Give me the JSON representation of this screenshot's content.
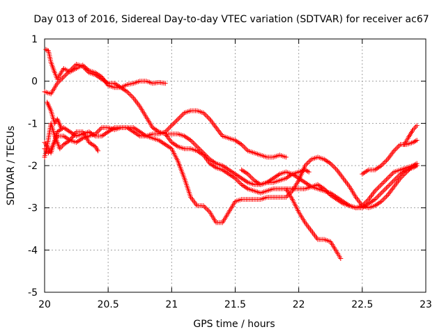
{
  "chart_data": {
    "type": "scatter",
    "title": "Day 013 of 2016, Sidereal Day-to-day VTEC variation (SDTVAR) for receiver ac67",
    "xlabel": "GPS time / hours",
    "ylabel": "SDTVAR / TECUs",
    "xlim": [
      20,
      23
    ],
    "ylim": [
      -5,
      1
    ],
    "xticks": [
      "20",
      "20.5",
      "21",
      "21.5",
      "22",
      "22.5",
      "23"
    ],
    "yticks": [
      "1",
      "0",
      "-1",
      "-2",
      "-3",
      "-4",
      "-5"
    ],
    "grid": true,
    "marker": "+",
    "marker_color": "#ff0000",
    "series": [
      {
        "points": [
          [
            20.01,
            0.75
          ],
          [
            20.03,
            0.72
          ],
          [
            20.05,
            0.45
          ],
          [
            20.08,
            0.2
          ],
          [
            20.1,
            0.05
          ],
          [
            20.15,
            0.3
          ],
          [
            20.2,
            0.22
          ],
          [
            20.25,
            0.3
          ],
          [
            20.3,
            0.38
          ],
          [
            20.35,
            0.25
          ],
          [
            20.4,
            0.2
          ],
          [
            20.45,
            0.1
          ],
          [
            20.5,
            -0.1
          ],
          [
            20.55,
            -0.15
          ],
          [
            20.6,
            -0.15
          ],
          [
            20.65,
            -0.08
          ],
          [
            20.7,
            -0.05
          ],
          [
            20.75,
            0.0
          ],
          [
            20.8,
            0.0
          ],
          [
            20.85,
            -0.05
          ],
          [
            20.9,
            -0.03
          ],
          [
            20.95,
            -0.05
          ]
        ]
      },
      {
        "points": [
          [
            20.0,
            -0.25
          ],
          [
            20.05,
            -0.3
          ],
          [
            20.1,
            -0.05
          ],
          [
            20.15,
            0.1
          ],
          [
            20.2,
            0.25
          ],
          [
            20.25,
            0.4
          ],
          [
            20.3,
            0.35
          ],
          [
            20.35,
            0.2
          ],
          [
            20.4,
            0.15
          ],
          [
            20.45,
            0.05
          ],
          [
            20.5,
            -0.05
          ],
          [
            20.55,
            -0.05
          ],
          [
            20.6,
            -0.15
          ],
          [
            20.65,
            -0.25
          ],
          [
            20.7,
            -0.4
          ],
          [
            20.75,
            -0.6
          ],
          [
            20.8,
            -0.85
          ],
          [
            20.85,
            -1.1
          ],
          [
            20.9,
            -1.2
          ],
          [
            20.95,
            -1.25
          ],
          [
            21.0,
            -1.25
          ],
          [
            21.05,
            -1.25
          ],
          [
            21.1,
            -1.3
          ],
          [
            21.15,
            -1.4
          ],
          [
            21.2,
            -1.55
          ],
          [
            21.25,
            -1.7
          ],
          [
            21.3,
            -1.85
          ],
          [
            21.35,
            -1.95
          ],
          [
            21.4,
            -2.0
          ],
          [
            21.45,
            -2.1
          ],
          [
            21.5,
            -2.2
          ],
          [
            21.55,
            -2.3
          ],
          [
            21.6,
            -2.4
          ],
          [
            21.65,
            -2.45
          ],
          [
            21.7,
            -2.45
          ],
          [
            21.75,
            -2.4
          ],
          [
            21.8,
            -2.3
          ],
          [
            21.85,
            -2.2
          ],
          [
            21.9,
            -2.15
          ],
          [
            21.95,
            -2.2
          ],
          [
            22.0,
            -2.3
          ],
          [
            22.05,
            -2.4
          ],
          [
            22.1,
            -2.5
          ],
          [
            22.15,
            -2.55
          ],
          [
            22.2,
            -2.6
          ],
          [
            22.25,
            -2.65
          ],
          [
            22.3,
            -2.75
          ],
          [
            22.35,
            -2.85
          ],
          [
            22.4,
            -2.95
          ],
          [
            22.45,
            -3.0
          ],
          [
            22.5,
            -3.0
          ],
          [
            22.55,
            -2.9
          ],
          [
            22.6,
            -2.8
          ],
          [
            22.65,
            -2.65
          ],
          [
            22.7,
            -2.5
          ],
          [
            22.75,
            -2.35
          ],
          [
            22.8,
            -2.2
          ],
          [
            22.85,
            -2.1
          ],
          [
            22.9,
            -2.05
          ],
          [
            22.93,
            -2.0
          ]
        ]
      },
      {
        "points": [
          [
            20.0,
            -1.6
          ],
          [
            20.03,
            -1.7
          ],
          [
            20.06,
            -1.55
          ],
          [
            20.1,
            -1.3
          ],
          [
            20.15,
            -1.3
          ],
          [
            20.2,
            -1.4
          ],
          [
            20.25,
            -1.45
          ],
          [
            20.3,
            -1.35
          ],
          [
            20.35,
            -1.3
          ],
          [
            20.4,
            -1.25
          ],
          [
            20.45,
            -1.1
          ],
          [
            20.5,
            -1.1
          ],
          [
            20.55,
            -1.15
          ],
          [
            20.6,
            -1.1
          ],
          [
            20.65,
            -1.1
          ],
          [
            20.7,
            -1.2
          ],
          [
            20.75,
            -1.3
          ],
          [
            20.8,
            -1.3
          ],
          [
            20.85,
            -1.35
          ],
          [
            20.9,
            -1.4
          ],
          [
            20.95,
            -1.5
          ],
          [
            21.0,
            -1.6
          ],
          [
            21.05,
            -1.9
          ],
          [
            21.1,
            -2.3
          ],
          [
            21.15,
            -2.75
          ],
          [
            21.2,
            -2.95
          ],
          [
            21.25,
            -2.95
          ],
          [
            21.3,
            -3.1
          ],
          [
            21.35,
            -3.35
          ],
          [
            21.4,
            -3.35
          ],
          [
            21.45,
            -3.1
          ],
          [
            21.5,
            -2.85
          ],
          [
            21.55,
            -2.8
          ],
          [
            21.6,
            -2.8
          ],
          [
            21.65,
            -2.8
          ],
          [
            21.7,
            -2.8
          ],
          [
            21.75,
            -2.75
          ],
          [
            21.8,
            -2.75
          ],
          [
            21.85,
            -2.75
          ],
          [
            21.9,
            -2.75
          ],
          [
            21.95,
            -2.6
          ],
          [
            22.0,
            -2.35
          ],
          [
            22.05,
            -2.0
          ],
          [
            22.1,
            -1.85
          ],
          [
            22.15,
            -1.8
          ],
          [
            22.2,
            -1.85
          ],
          [
            22.25,
            -1.95
          ],
          [
            22.3,
            -2.1
          ],
          [
            22.35,
            -2.3
          ],
          [
            22.4,
            -2.5
          ],
          [
            22.45,
            -2.75
          ],
          [
            22.5,
            -2.95
          ],
          [
            22.55,
            -3.0
          ],
          [
            22.6,
            -2.95
          ],
          [
            22.65,
            -2.85
          ],
          [
            22.7,
            -2.7
          ],
          [
            22.75,
            -2.5
          ],
          [
            22.8,
            -2.3
          ],
          [
            22.85,
            -2.15
          ],
          [
            22.9,
            -2.0
          ],
          [
            22.93,
            -2.0
          ]
        ]
      },
      {
        "points": [
          [
            20.0,
            -1.45
          ],
          [
            20.05,
            -1.7
          ],
          [
            20.08,
            -1.4
          ],
          [
            20.1,
            -1.2
          ],
          [
            20.15,
            -1.1
          ],
          [
            20.2,
            -1.2
          ],
          [
            20.25,
            -1.3
          ],
          [
            20.3,
            -1.25
          ],
          [
            20.35,
            -1.2
          ],
          [
            20.4,
            -1.3
          ],
          [
            20.45,
            -1.3
          ],
          [
            20.5,
            -1.2
          ],
          [
            20.55,
            -1.1
          ],
          [
            20.6,
            -1.1
          ],
          [
            20.65,
            -1.1
          ],
          [
            20.7,
            -1.1
          ],
          [
            20.75,
            -1.2
          ],
          [
            20.8,
            -1.3
          ],
          [
            20.85,
            -1.25
          ],
          [
            20.9,
            -1.25
          ],
          [
            20.95,
            -1.2
          ],
          [
            21.0,
            -1.05
          ],
          [
            21.05,
            -0.9
          ],
          [
            21.1,
            -0.75
          ],
          [
            21.15,
            -0.7
          ],
          [
            21.2,
            -0.7
          ],
          [
            21.25,
            -0.75
          ],
          [
            21.3,
            -0.9
          ],
          [
            21.35,
            -1.1
          ],
          [
            21.4,
            -1.3
          ],
          [
            21.45,
            -1.35
          ],
          [
            21.5,
            -1.4
          ],
          [
            21.55,
            -1.5
          ],
          [
            21.6,
            -1.65
          ],
          [
            21.65,
            -1.7
          ],
          [
            21.7,
            -1.75
          ],
          [
            21.75,
            -1.8
          ],
          [
            21.8,
            -1.8
          ],
          [
            21.85,
            -1.75
          ],
          [
            21.9,
            -1.8
          ]
        ]
      },
      {
        "points": [
          [
            20.0,
            -1.8
          ],
          [
            20.02,
            -1.55
          ],
          [
            20.05,
            -1.0
          ],
          [
            20.08,
            -1.3
          ],
          [
            20.12,
            -1.6
          ],
          [
            20.15,
            -1.5
          ],
          [
            20.2,
            -1.4
          ],
          [
            20.25,
            -1.2
          ],
          [
            20.3,
            -1.2
          ],
          [
            20.35,
            -1.45
          ],
          [
            20.4,
            -1.55
          ],
          [
            20.42,
            -1.65
          ]
        ]
      },
      {
        "points": [
          [
            20.02,
            -0.5
          ],
          [
            20.05,
            -0.7
          ],
          [
            20.08,
            -1.0
          ],
          [
            20.1,
            -0.9
          ],
          [
            20.13,
            -1.1
          ]
        ]
      },
      {
        "points": [
          [
            20.95,
            -1.25
          ],
          [
            21.0,
            -1.45
          ],
          [
            21.05,
            -1.55
          ],
          [
            21.1,
            -1.6
          ],
          [
            21.15,
            -1.6
          ],
          [
            21.2,
            -1.65
          ],
          [
            21.25,
            -1.75
          ],
          [
            21.3,
            -1.95
          ],
          [
            21.35,
            -2.05
          ],
          [
            21.4,
            -2.1
          ],
          [
            21.45,
            -2.2
          ],
          [
            21.5,
            -2.3
          ],
          [
            21.55,
            -2.45
          ],
          [
            21.6,
            -2.55
          ],
          [
            21.65,
            -2.6
          ],
          [
            21.7,
            -2.65
          ],
          [
            21.75,
            -2.6
          ],
          [
            21.8,
            -2.55
          ],
          [
            21.85,
            -2.55
          ],
          [
            21.9,
            -2.55
          ],
          [
            21.95,
            -2.55
          ],
          [
            22.0,
            -2.55
          ],
          [
            22.05,
            -2.55
          ],
          [
            22.1,
            -2.5
          ],
          [
            22.15,
            -2.45
          ],
          [
            22.2,
            -2.55
          ],
          [
            22.25,
            -2.7
          ],
          [
            22.3,
            -2.8
          ],
          [
            22.35,
            -2.9
          ],
          [
            22.4,
            -2.95
          ],
          [
            22.45,
            -3.0
          ],
          [
            22.5,
            -2.95
          ],
          [
            22.55,
            -2.8
          ],
          [
            22.6,
            -2.6
          ],
          [
            22.65,
            -2.45
          ],
          [
            22.7,
            -2.3
          ],
          [
            22.75,
            -2.15
          ],
          [
            22.8,
            -2.1
          ],
          [
            22.85,
            -2.05
          ],
          [
            22.9,
            -2.0
          ],
          [
            22.93,
            -1.95
          ]
        ]
      },
      {
        "points": [
          [
            21.55,
            -2.1
          ],
          [
            21.6,
            -2.2
          ],
          [
            21.65,
            -2.35
          ],
          [
            21.7,
            -2.45
          ],
          [
            21.75,
            -2.4
          ],
          [
            21.8,
            -2.4
          ],
          [
            21.85,
            -2.35
          ],
          [
            21.9,
            -2.3
          ],
          [
            21.95,
            -2.2
          ],
          [
            22.0,
            -2.15
          ],
          [
            22.05,
            -2.1
          ],
          [
            22.08,
            -2.15
          ]
        ]
      },
      {
        "points": [
          [
            21.9,
            -2.55
          ],
          [
            21.95,
            -2.8
          ],
          [
            22.0,
            -3.1
          ],
          [
            22.05,
            -3.35
          ],
          [
            22.1,
            -3.55
          ],
          [
            22.15,
            -3.75
          ],
          [
            22.2,
            -3.75
          ],
          [
            22.25,
            -3.8
          ],
          [
            22.3,
            -4.05
          ],
          [
            22.33,
            -4.2
          ]
        ]
      },
      {
        "points": [
          [
            22.5,
            -2.2
          ],
          [
            22.55,
            -2.1
          ],
          [
            22.6,
            -2.1
          ],
          [
            22.65,
            -2.0
          ],
          [
            22.7,
            -1.85
          ],
          [
            22.75,
            -1.65
          ],
          [
            22.8,
            -1.5
          ],
          [
            22.85,
            -1.5
          ],
          [
            22.9,
            -1.45
          ],
          [
            22.93,
            -1.4
          ]
        ]
      },
      {
        "points": [
          [
            22.83,
            -1.5
          ],
          [
            22.86,
            -1.35
          ],
          [
            22.9,
            -1.15
          ],
          [
            22.93,
            -1.05
          ]
        ]
      }
    ]
  }
}
